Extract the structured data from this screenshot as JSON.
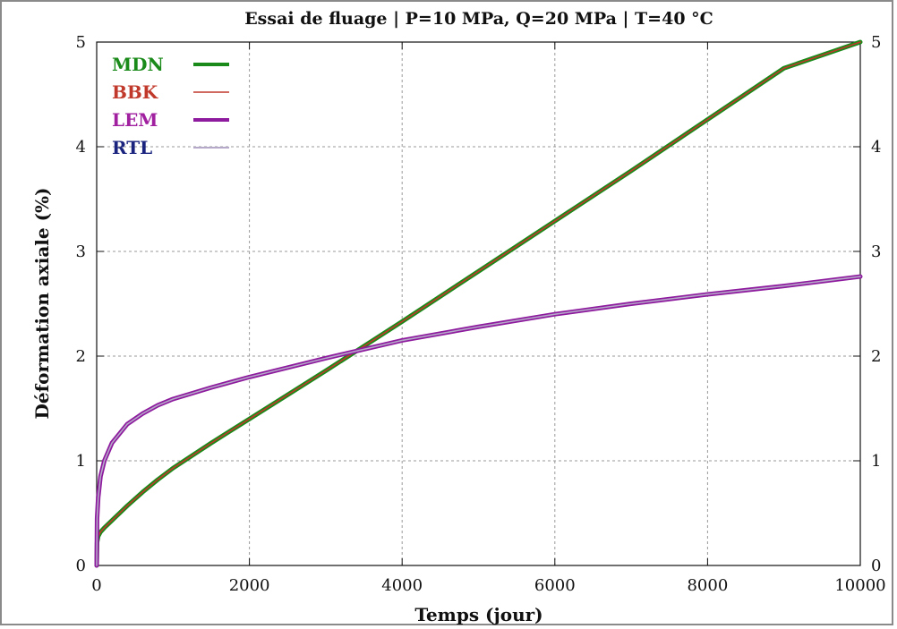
{
  "chart_data": {
    "type": "line",
    "title": "Essai de fluage | P=10 MPa, Q=20 MPa | T=40 °C",
    "xlabel": "Temps (jour)",
    "ylabel": "Déformation axiale (%)",
    "xlim": [
      0,
      10000
    ],
    "ylim": [
      0,
      5
    ],
    "x_ticks": [
      "0",
      "2000",
      "4000",
      "6000",
      "8000",
      "10000"
    ],
    "y_ticks": [
      "0",
      "1",
      "2",
      "3",
      "4",
      "5"
    ],
    "y2_ticks": [
      "0",
      "1",
      "2",
      "3",
      "4",
      "5"
    ],
    "grid": true,
    "legend_position": "top-left",
    "series": [
      {
        "name": "MDN",
        "color": "#1a8a1a",
        "label_color": "#1a8a1a",
        "points": [
          [
            0,
            0
          ],
          [
            5,
            0.22
          ],
          [
            20,
            0.28
          ],
          [
            50,
            0.32
          ],
          [
            100,
            0.36
          ],
          [
            200,
            0.43
          ],
          [
            400,
            0.57
          ],
          [
            600,
            0.7
          ],
          [
            800,
            0.82
          ],
          [
            1000,
            0.93
          ],
          [
            1500,
            1.17
          ],
          [
            2000,
            1.4
          ],
          [
            3000,
            1.86
          ],
          [
            4000,
            2.33
          ],
          [
            5000,
            2.81
          ],
          [
            6000,
            3.29
          ],
          [
            7000,
            3.77
          ],
          [
            8000,
            4.26
          ],
          [
            9000,
            4.75
          ],
          [
            10000,
            5.0
          ]
        ]
      },
      {
        "name": "BBK",
        "color": "#c0392b",
        "label_color": "#c0392b",
        "points": [
          [
            0,
            0
          ],
          [
            5,
            0.22
          ],
          [
            20,
            0.28
          ],
          [
            50,
            0.32
          ],
          [
            100,
            0.36
          ],
          [
            200,
            0.43
          ],
          [
            400,
            0.57
          ],
          [
            600,
            0.7
          ],
          [
            800,
            0.82
          ],
          [
            1000,
            0.93
          ],
          [
            1500,
            1.17
          ],
          [
            2000,
            1.4
          ],
          [
            3000,
            1.86
          ],
          [
            4000,
            2.33
          ],
          [
            5000,
            2.81
          ],
          [
            6000,
            3.29
          ],
          [
            7000,
            3.77
          ],
          [
            8000,
            4.26
          ],
          [
            9000,
            4.75
          ],
          [
            10000,
            5.0
          ]
        ]
      },
      {
        "name": "LEM",
        "color": "#8e1a9e",
        "label_color": "#a020a0",
        "points": [
          [
            0,
            0
          ],
          [
            5,
            0.45
          ],
          [
            20,
            0.65
          ],
          [
            50,
            0.85
          ],
          [
            100,
            1.0
          ],
          [
            200,
            1.17
          ],
          [
            400,
            1.35
          ],
          [
            600,
            1.45
          ],
          [
            800,
            1.53
          ],
          [
            1000,
            1.59
          ],
          [
            1500,
            1.7
          ],
          [
            2000,
            1.8
          ],
          [
            3000,
            1.98
          ],
          [
            4000,
            2.15
          ],
          [
            5000,
            2.28
          ],
          [
            6000,
            2.4
          ],
          [
            7000,
            2.5
          ],
          [
            8000,
            2.59
          ],
          [
            9000,
            2.67
          ],
          [
            10000,
            2.76
          ]
        ]
      },
      {
        "name": "RTL",
        "color": "#b5a8c8",
        "label_color": "#1a237e",
        "points": [
          [
            0,
            0
          ],
          [
            5,
            0.45
          ],
          [
            20,
            0.65
          ],
          [
            50,
            0.85
          ],
          [
            100,
            1.0
          ],
          [
            200,
            1.17
          ],
          [
            400,
            1.35
          ],
          [
            600,
            1.45
          ],
          [
            800,
            1.53
          ],
          [
            1000,
            1.59
          ],
          [
            1500,
            1.7
          ],
          [
            2000,
            1.8
          ],
          [
            3000,
            1.98
          ],
          [
            4000,
            2.15
          ],
          [
            5000,
            2.28
          ],
          [
            6000,
            2.4
          ],
          [
            7000,
            2.5
          ],
          [
            8000,
            2.59
          ],
          [
            9000,
            2.67
          ],
          [
            10000,
            2.76
          ]
        ]
      }
    ]
  }
}
